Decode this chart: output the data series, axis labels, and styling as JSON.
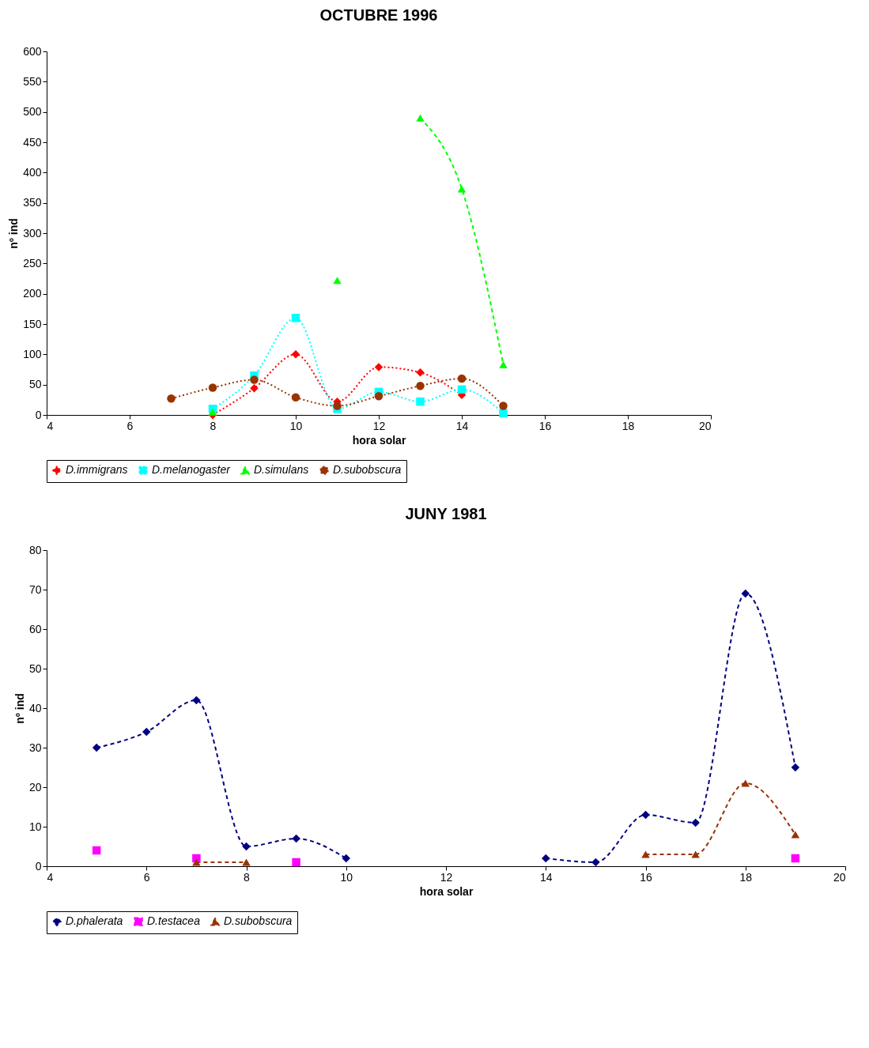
{
  "chart_data": [
    {
      "type": "line",
      "title": "OCTUBRE 1996",
      "xlabel": "hora solar",
      "ylabel": "nº ind",
      "x": [
        7,
        8,
        9,
        10,
        11,
        12,
        13,
        14,
        15
      ],
      "xlim": [
        4,
        20
      ],
      "xticks": [
        4,
        6,
        8,
        10,
        12,
        14,
        16,
        18,
        20
      ],
      "ylim": [
        0,
        600
      ],
      "yticks": [
        0,
        50,
        100,
        150,
        200,
        250,
        300,
        350,
        400,
        450,
        500,
        550,
        600
      ],
      "grid": false,
      "legend": "bottom",
      "series": [
        {
          "name": "D.immigrans",
          "color": "#ff0000",
          "marker": "diamond",
          "line_style": "dotted",
          "values": [
            null,
            0,
            44,
            100,
            22,
            79,
            70,
            33,
            null
          ]
        },
        {
          "name": "D.melanogaster",
          "color": "#00ffff",
          "marker": "square",
          "line_style": "dotted",
          "values": [
            null,
            10,
            65,
            160,
            10,
            38,
            22,
            42,
            3
          ]
        },
        {
          "name": "D.simulans",
          "color": "#00ff00",
          "marker": "triangle",
          "line_style": "dashed",
          "values": [
            null,
            5,
            null,
            null,
            222,
            null,
            490,
            373,
            83
          ]
        },
        {
          "name": "D.subobscura",
          "color": "#993300",
          "marker": "circle",
          "line_style": "dotted",
          "values": [
            27,
            45,
            58,
            29,
            15,
            31,
            48,
            60,
            15
          ]
        }
      ]
    },
    {
      "type": "line",
      "title": "JUNY 1981",
      "xlabel": "hora solar",
      "ylabel": "nº ind",
      "x": [
        5,
        6,
        7,
        8,
        9,
        10,
        11,
        12,
        13,
        14,
        15,
        16,
        17,
        18,
        19
      ],
      "xlim": [
        4,
        20
      ],
      "xticks": [
        4,
        6,
        8,
        10,
        12,
        14,
        16,
        18,
        20
      ],
      "ylim": [
        0,
        80
      ],
      "yticks": [
        0,
        10,
        20,
        30,
        40,
        50,
        60,
        70,
        80
      ],
      "grid": false,
      "legend": "bottom",
      "series": [
        {
          "name": "D.phalerata",
          "color": "#000080",
          "marker": "diamond",
          "line_style": "dashed",
          "values": [
            30,
            34,
            42,
            5,
            7,
            2,
            null,
            null,
            null,
            2,
            1,
            13,
            11,
            69,
            25
          ]
        },
        {
          "name": "D.testacea",
          "color": "#ff00ff",
          "marker": "square",
          "line_style": "dashed",
          "values": [
            4,
            null,
            2,
            null,
            1,
            null,
            null,
            null,
            null,
            null,
            null,
            null,
            null,
            null,
            2
          ]
        },
        {
          "name": "D.subobscura",
          "color": "#993300",
          "marker": "triangle",
          "line_style": "dashed",
          "values": [
            null,
            null,
            1,
            1,
            null,
            null,
            null,
            null,
            null,
            null,
            null,
            3,
            3,
            21,
            8
          ]
        }
      ]
    }
  ]
}
